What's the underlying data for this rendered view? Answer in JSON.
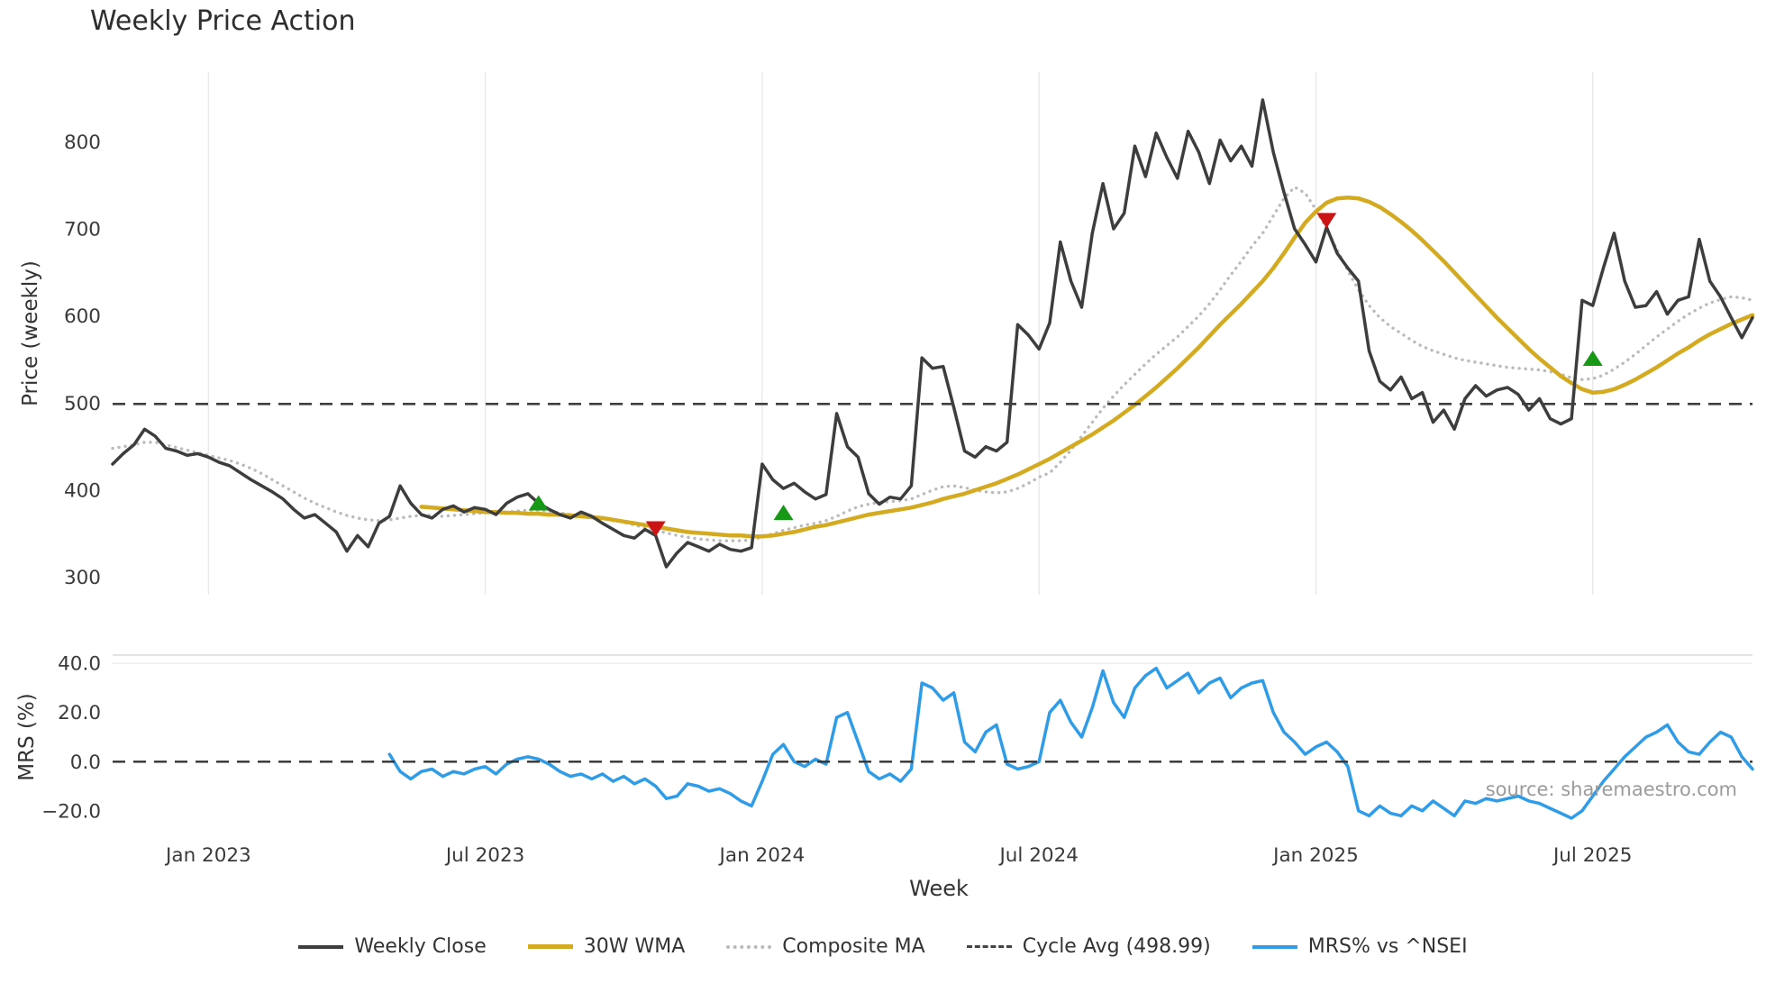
{
  "source_note": "source: sharemaestro.com",
  "chart_data": {
    "type": "line",
    "title": "Weekly Price Action",
    "xlabel": "Week",
    "x_unit": "week-index",
    "x_range": [
      0,
      154
    ],
    "grid": "vertical-on-price-panel",
    "legend_position": "bottom-center",
    "xticks": [
      {
        "i": 9,
        "label": "Jan 2023"
      },
      {
        "i": 35,
        "label": "Jul 2023"
      },
      {
        "i": 61,
        "label": "Jan 2024"
      },
      {
        "i": 87,
        "label": "Jul 2024"
      },
      {
        "i": 113,
        "label": "Jan 2025"
      },
      {
        "i": 139,
        "label": "Jul 2025"
      }
    ],
    "panels": [
      {
        "name": "price",
        "ylabel": "Price (weekly)",
        "ylim": [
          280,
          880
        ],
        "yticks": [
          300,
          400,
          500,
          600,
          700,
          800
        ],
        "ytick_labels": [
          "300",
          "400",
          "500",
          "600",
          "700",
          "800"
        ],
        "cycle_avg": 498.99,
        "series": [
          {
            "name": "Weekly Close",
            "color": "#3d3d3d",
            "style": "solid",
            "width": 3.5,
            "start": 0,
            "values": [
              430,
              442,
              452,
              470,
              462,
              448,
              445,
              440,
              442,
              438,
              432,
              428,
              420,
              412,
              405,
              398,
              390,
              378,
              368,
              372,
              362,
              352,
              330,
              348,
              335,
              362,
              370,
              405,
              385,
              372,
              368,
              378,
              382,
              375,
              380,
              378,
              372,
              385,
              392,
              396,
              385,
              378,
              372,
              368,
              375,
              370,
              362,
              355,
              348,
              345,
              355,
              348,
              312,
              328,
              340,
              335,
              330,
              338,
              332,
              330,
              334,
              430,
              412,
              402,
              408,
              398,
              390,
              395,
              488,
              450,
              438,
              396,
              384,
              392,
              390,
              405,
              552,
              540,
              542,
              495,
              445,
              438,
              450,
              445,
              455,
              590,
              578,
              562,
              592,
              685,
              640,
              610,
              695,
              752,
              700,
              718,
              795,
              760,
              810,
              782,
              758,
              812,
              788,
              752,
              802,
              778,
              795,
              772,
              848,
              788,
              742,
              700,
              682,
              662,
              702,
              672,
              655,
              640,
              560,
              525,
              515,
              530,
              505,
              512,
              478,
              492,
              470,
              505,
              520,
              508,
              515,
              518,
              510,
              492,
              505,
              482,
              476,
              482,
              618,
              612,
              655,
              695,
              640,
              610,
              612,
              628,
              602,
              618,
              622,
              688,
              640,
              622,
              598,
              575,
              598
            ]
          },
          {
            "name": "30W WMA",
            "color": "#d4aa20",
            "style": "solid",
            "width": 4.5,
            "start": 29,
            "values": [
              381,
              380,
              379,
              378,
              377,
              376,
              375,
              375,
              374,
              374,
              373,
              373,
              372,
              372,
              371,
              370,
              369,
              368,
              366,
              364,
              362,
              360,
              358,
              356,
              354,
              352,
              351,
              350,
              349,
              348,
              348,
              347,
              347,
              348,
              350,
              352,
              355,
              358,
              360,
              363,
              366,
              369,
              372,
              374,
              376,
              378,
              380,
              383,
              386,
              390,
              393,
              396,
              400,
              404,
              408,
              413,
              418,
              424,
              430,
              436,
              443,
              450,
              457,
              464,
              472,
              480,
              489,
              498,
              508,
              518,
              529,
              540,
              552,
              564,
              577,
              590,
              602,
              614,
              627,
              640,
              655,
              672,
              690,
              707,
              720,
              730,
              735,
              736,
              735,
              731,
              725,
              717,
              708,
              698,
              687,
              675,
              663,
              650,
              637,
              624,
              611,
              598,
              586,
              574,
              562,
              551,
              541,
              531,
              523,
              516,
              512,
              513,
              516,
              521,
              527,
              534,
              541,
              549,
              557,
              564,
              572,
              579,
              585,
              591,
              596,
              601
            ]
          },
          {
            "name": "Composite MA",
            "color": "#bbbbbb",
            "style": "dotted",
            "width": 3.4,
            "start": 0,
            "values": [
              448,
              450,
              452,
              455,
              455,
              452,
              449,
              446,
              443,
              440,
              437,
              434,
              430,
              425,
              419,
              412,
              405,
              398,
              391,
              385,
              380,
              375,
              371,
              368,
              366,
              365,
              366,
              368,
              370,
              371,
              371,
              370,
              371,
              372,
              373,
              374,
              374,
              375,
              376,
              377,
              377,
              376,
              374,
              372,
              371,
              370,
              368,
              366,
              363,
              360,
              357,
              354,
              351,
              348,
              346,
              344,
              343,
              342,
              342,
              342,
              343,
              346,
              350,
              354,
              357,
              360,
              362,
              365,
              370,
              376,
              381,
              384,
              386,
              387,
              388,
              390,
              395,
              400,
              404,
              405,
              403,
              400,
              398,
              397,
              398,
              402,
              408,
              415,
              420,
              432,
              446,
              462,
              478,
              494,
              508,
              521,
              533,
              545,
              556,
              566,
              576,
              588,
              600,
              614,
              630,
              647,
              663,
              680,
              695,
              715,
              735,
              748,
              741,
              722,
              700,
              676,
              652,
              630,
              612,
              598,
              588,
              580,
              572,
              565,
              560,
              556,
              552,
              549,
              547,
              545,
              543,
              541,
              540,
              539,
              538,
              536,
              533,
              529,
              527,
              528,
              532,
              539,
              547,
              556,
              566,
              576,
              585,
              594,
              602,
              609,
              615,
              619,
              622,
              621,
              618
            ]
          }
        ],
        "signals": {
          "buy": {
            "color": "#179917",
            "shape": "triangle-up",
            "points": [
              {
                "i": 40,
                "value": 385
              },
              {
                "i": 63,
                "value": 374
              },
              {
                "i": 139,
                "value": 551
              }
            ]
          },
          "sell": {
            "color": "#cc1414",
            "shape": "triangle-down",
            "points": [
              {
                "i": 51,
                "value": 356
              },
              {
                "i": 114,
                "value": 710
              }
            ]
          }
        }
      },
      {
        "name": "mrs",
        "ylabel": "MRS (%)",
        "ylim": [
          -23,
          43
        ],
        "yticks": [
          -20,
          0,
          20,
          40
        ],
        "ytick_labels": [
          "−20.0",
          "0.0",
          "20.0",
          "40.0"
        ],
        "zero_line": 0,
        "series": [
          {
            "name": "MRS% vs ^NSEI",
            "color": "#2f9ce8",
            "style": "solid",
            "width": 3.5,
            "start": 26,
            "values": [
              3,
              -4,
              -7,
              -4,
              -3,
              -6,
              -4,
              -5,
              -3,
              -2,
              -5,
              -1,
              1,
              2,
              1,
              -1,
              -4,
              -6,
              -5,
              -7,
              -5,
              -8,
              -6,
              -9,
              -7,
              -10,
              -15,
              -14,
              -9,
              -10,
              -12,
              -11,
              -13,
              -16,
              -18,
              -8,
              3,
              7,
              0,
              -2,
              1,
              -1,
              18,
              20,
              8,
              -4,
              -7,
              -5,
              -8,
              -3,
              32,
              30,
              25,
              28,
              8,
              4,
              12,
              15,
              -1,
              -3,
              -2,
              0,
              20,
              25,
              16,
              10,
              22,
              37,
              24,
              18,
              30,
              35,
              38,
              30,
              33,
              36,
              28,
              32,
              34,
              26,
              30,
              32,
              33,
              20,
              12,
              8,
              3,
              6,
              8,
              4,
              -2,
              -20,
              -22,
              -18,
              -21,
              -22,
              -18,
              -20,
              -16,
              -19,
              -22,
              -16,
              -17,
              -15,
              -16,
              -15,
              -14,
              -16,
              -17,
              -19,
              -21,
              -23,
              -20,
              -14,
              -8,
              -3,
              2,
              6,
              10,
              12,
              15,
              8,
              4,
              3,
              8,
              12,
              10,
              2,
              -3
            ]
          }
        ]
      }
    ],
    "legend": [
      {
        "label": "Weekly Close",
        "style": "solid",
        "color": "#3d3d3d"
      },
      {
        "label": "30W WMA",
        "style": "solid",
        "color": "#d4aa20"
      },
      {
        "label": "Composite MA",
        "style": "dotted",
        "color": "#bbbbbb"
      },
      {
        "label": "Cycle Avg (498.99)",
        "style": "dashed",
        "color": "#444444"
      },
      {
        "label": "MRS% vs ^NSEI",
        "style": "solid",
        "color": "#2f9ce8"
      }
    ]
  }
}
